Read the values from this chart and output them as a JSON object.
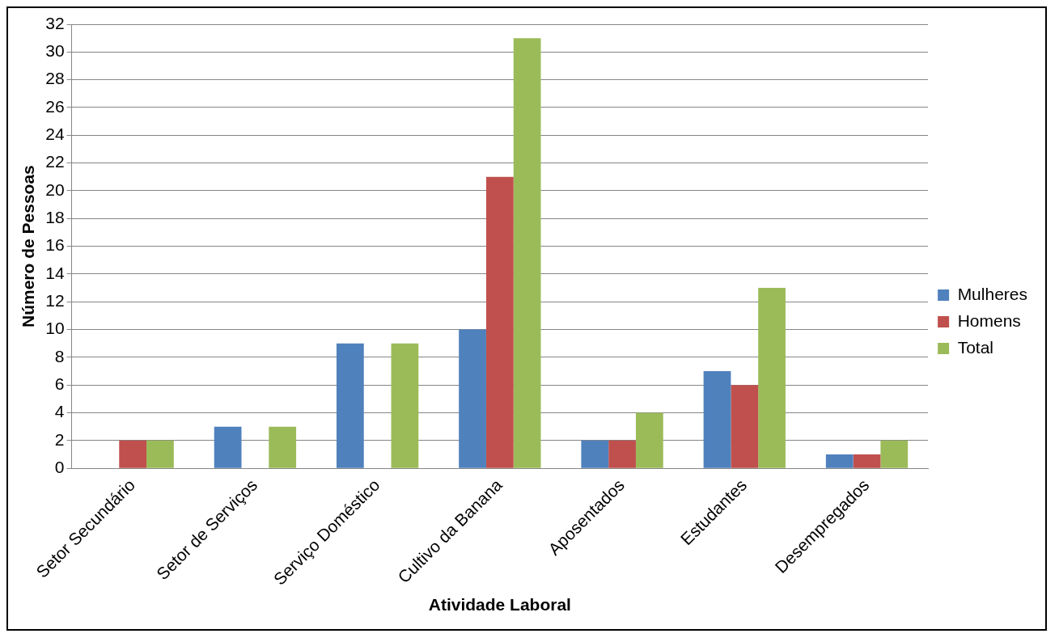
{
  "chart_data": {
    "type": "bar",
    "xlabel": "Atividade Laboral",
    "ylabel": "Número de Pessoas",
    "categories": [
      "Setor Secundário",
      "Setor de Serviços",
      "Serviço Doméstico",
      "Cultivo da Banana",
      "Aposentados",
      "Estudantes",
      "Desempregados"
    ],
    "series": [
      {
        "name": "Mulheres",
        "color": "#4f81bd",
        "values": [
          0,
          3,
          9,
          10,
          2,
          7,
          1
        ]
      },
      {
        "name": "Homens",
        "color": "#c0504d",
        "values": [
          2,
          0,
          0,
          21,
          2,
          6,
          1
        ]
      },
      {
        "name": "Total",
        "color": "#9bbb59",
        "values": [
          2,
          3,
          9,
          31,
          4,
          13,
          2
        ]
      }
    ],
    "ylim": [
      0,
      32
    ],
    "yticks": [
      0,
      2,
      4,
      6,
      8,
      10,
      12,
      14,
      16,
      18,
      20,
      22,
      24,
      26,
      28,
      30,
      32
    ],
    "grid": "y",
    "legend": "right"
  }
}
